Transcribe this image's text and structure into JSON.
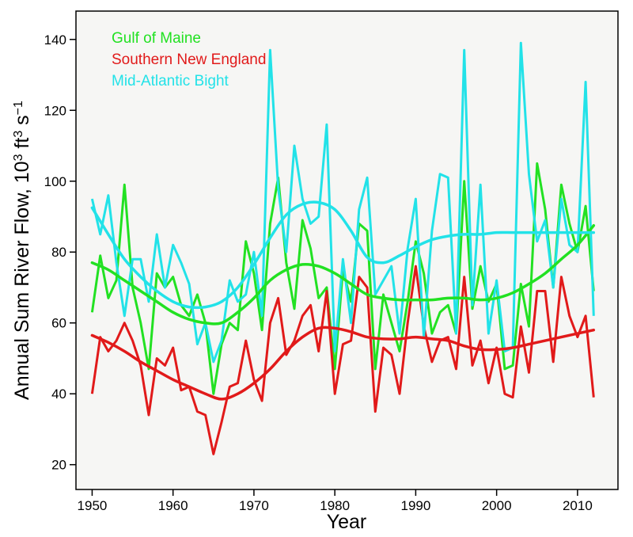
{
  "chart_data": {
    "type": "line",
    "xlabel": "Year",
    "ylabel": {
      "main": "Annual Sum River Flow, 10",
      "sup1": "3",
      "mid": " ft",
      "sup2": "3",
      "end": " s",
      "sup3": "−1"
    },
    "xlim": [
      1948,
      2015
    ],
    "ylim": [
      13,
      148
    ],
    "xticks": [
      1950,
      1960,
      1970,
      1980,
      1990,
      2000,
      2010
    ],
    "yticks": [
      20,
      40,
      60,
      80,
      100,
      120,
      140
    ],
    "legend_position": "top-left",
    "grid": false,
    "background_color": "#f6f6f4",
    "x": [
      1950,
      1951,
      1952,
      1953,
      1954,
      1955,
      1956,
      1957,
      1958,
      1959,
      1960,
      1961,
      1962,
      1963,
      1964,
      1965,
      1966,
      1967,
      1968,
      1969,
      1970,
      1971,
      1972,
      1973,
      1974,
      1975,
      1976,
      1977,
      1978,
      1979,
      1980,
      1981,
      1982,
      1983,
      1984,
      1985,
      1986,
      1987,
      1988,
      1989,
      1990,
      1991,
      1992,
      1993,
      1994,
      1995,
      1996,
      1997,
      1998,
      1999,
      2000,
      2001,
      2002,
      2003,
      2004,
      2005,
      2006,
      2007,
      2008,
      2009,
      2010,
      2011,
      2012
    ],
    "series": [
      {
        "name": "Gulf of Maine",
        "color": "#22e122",
        "values": [
          63,
          79,
          67,
          72,
          99,
          70,
          60,
          47,
          74,
          70,
          73,
          65,
          62,
          68,
          60,
          40,
          54,
          60,
          58,
          83,
          74,
          58,
          88,
          101,
          77,
          64,
          89,
          81,
          67,
          70,
          47,
          75,
          66,
          88,
          86,
          47,
          68,
          60,
          52,
          66,
          83,
          74,
          57,
          63,
          65,
          57,
          100,
          64,
          76,
          66,
          71,
          47,
          48,
          71,
          59,
          105,
          92,
          70,
          99,
          88,
          80,
          93,
          69
        ]
      },
      {
        "name": "Southern New England",
        "color": "#e11a1a",
        "values": [
          40,
          56,
          52,
          55,
          60,
          55,
          48,
          34,
          50,
          48,
          53,
          41,
          42,
          35,
          34,
          23,
          32,
          42,
          43,
          55,
          44,
          38,
          60,
          67,
          51,
          55,
          62,
          65,
          52,
          69,
          40,
          54,
          55,
          73,
          70,
          35,
          53,
          51,
          40,
          60,
          76,
          59,
          49,
          55,
          56,
          47,
          73,
          48,
          55,
          43,
          53,
          40,
          39,
          59,
          46,
          69,
          69,
          49,
          73,
          62,
          56,
          62,
          39
        ]
      },
      {
        "name": "Mid-Atlantic Bight",
        "color": "#22e2e8",
        "values": [
          95,
          85,
          96,
          77,
          62,
          78,
          78,
          66,
          85,
          70,
          82,
          77,
          71,
          54,
          60,
          49,
          55,
          72,
          66,
          68,
          80,
          62,
          137,
          98,
          80,
          110,
          95,
          88,
          90,
          116,
          52,
          78,
          60,
          92,
          101,
          68,
          72,
          76,
          57,
          81,
          95,
          56,
          86,
          102,
          101,
          57,
          137,
          65,
          99,
          57,
          72,
          52,
          53,
          139,
          102,
          83,
          89,
          70,
          95,
          82,
          80,
          128,
          62
        ]
      }
    ],
    "smooth_series": [
      {
        "name": "Gulf of Maine",
        "color": "#22e122",
        "x": [
          1950,
          1952,
          1954,
          1956,
          1958,
          1960,
          1962,
          1964,
          1966,
          1968,
          1970,
          1972,
          1974,
          1976,
          1978,
          1980,
          1982,
          1984,
          1986,
          1988,
          1990,
          1992,
          1994,
          1996,
          1998,
          2000,
          2002,
          2004,
          2006,
          2008,
          2010,
          2012
        ],
        "values": [
          77,
          75,
          72,
          69,
          66,
          63,
          61,
          60,
          60,
          63,
          67,
          72,
          75,
          76.5,
          76,
          74,
          71,
          68,
          67,
          66.5,
          66.5,
          66.5,
          67,
          67,
          66.5,
          67,
          68.5,
          71,
          74,
          78,
          82,
          87.5
        ]
      },
      {
        "name": "Southern New England",
        "color": "#e11a1a",
        "x": [
          1950,
          1952,
          1954,
          1956,
          1958,
          1960,
          1962,
          1964,
          1966,
          1968,
          1970,
          1972,
          1974,
          1976,
          1978,
          1980,
          1982,
          1984,
          1986,
          1988,
          1990,
          1992,
          1994,
          1996,
          1998,
          2000,
          2002,
          2004,
          2006,
          2008,
          2010,
          2012
        ],
        "values": [
          56.5,
          54.5,
          52,
          49,
          46.5,
          44,
          42,
          40,
          38.5,
          40,
          43,
          47,
          52,
          56,
          58.5,
          58.5,
          57.5,
          56,
          55.5,
          55.5,
          56,
          55.5,
          55,
          53.5,
          52.5,
          52.5,
          53,
          54,
          55,
          56,
          57,
          58
        ]
      },
      {
        "name": "Mid-Atlantic Bight",
        "color": "#22e2e8",
        "x": [
          1950,
          1952,
          1954,
          1956,
          1958,
          1960,
          1962,
          1964,
          1966,
          1968,
          1970,
          1972,
          1974,
          1976,
          1978,
          1980,
          1982,
          1984,
          1986,
          1988,
          1990,
          1992,
          1994,
          1996,
          1998,
          2000,
          2002,
          2004,
          2006,
          2008,
          2010,
          2012
        ],
        "values": [
          92.5,
          85,
          78,
          73,
          69,
          66,
          64.5,
          64.5,
          66,
          70,
          76.5,
          84,
          90.5,
          93.5,
          94,
          92,
          86,
          78.5,
          77,
          79,
          81.5,
          83.5,
          84.5,
          85,
          85,
          85.5,
          85.5,
          85.5,
          85.5,
          85.5,
          85.5,
          85.5
        ]
      }
    ]
  }
}
